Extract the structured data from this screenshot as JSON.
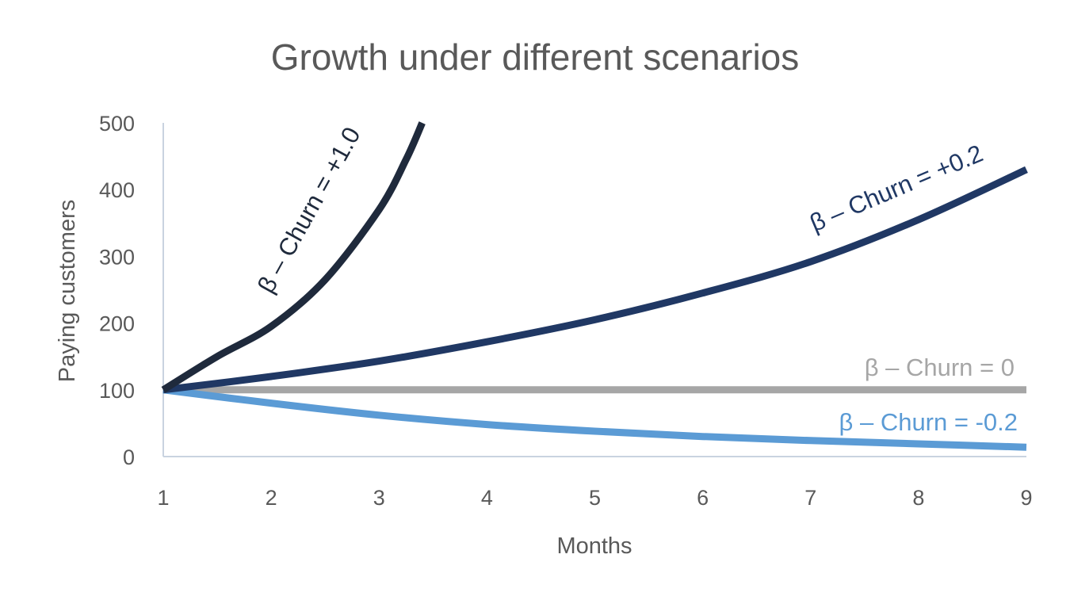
{
  "chart_data": {
    "type": "line",
    "title": "Growth under different scenarios",
    "xlabel": "Months",
    "ylabel": "Paying customers",
    "xlim": [
      1,
      9
    ],
    "ylim": [
      0,
      500
    ],
    "x_ticks": [
      "1",
      "2",
      "3",
      "4",
      "5",
      "6",
      "7",
      "8",
      "9"
    ],
    "y_ticks": [
      "0",
      "100",
      "200",
      "300",
      "400",
      "500"
    ],
    "grid": false,
    "series": [
      {
        "name": "β – Churn = +1.0",
        "color": "#1f2a3c",
        "x": [
          1,
          1.5,
          2,
          2.5,
          3,
          3.25,
          3.4
        ],
        "values": [
          100,
          150,
          195,
          265,
          370,
          445,
          500
        ]
      },
      {
        "name": "β – Churn = +0.2",
        "color": "#203864",
        "x": [
          1,
          2,
          3,
          4,
          5,
          6,
          7,
          8,
          9
        ],
        "values": [
          100,
          120,
          143,
          172,
          205,
          245,
          292,
          355,
          430
        ]
      },
      {
        "name": "β – Churn = 0",
        "color": "#a6a6a6",
        "x": [
          1,
          2,
          3,
          4,
          5,
          6,
          7,
          8,
          9
        ],
        "values": [
          100,
          100,
          100,
          100,
          100,
          100,
          100,
          100,
          100
        ]
      },
      {
        "name": "β – Churn = -0.2",
        "color": "#5b9bd5",
        "x": [
          1,
          2,
          3,
          4,
          5,
          6,
          7,
          8,
          9
        ],
        "values": [
          100,
          80,
          62,
          48,
          38,
          30,
          24,
          19,
          14
        ]
      }
    ]
  }
}
